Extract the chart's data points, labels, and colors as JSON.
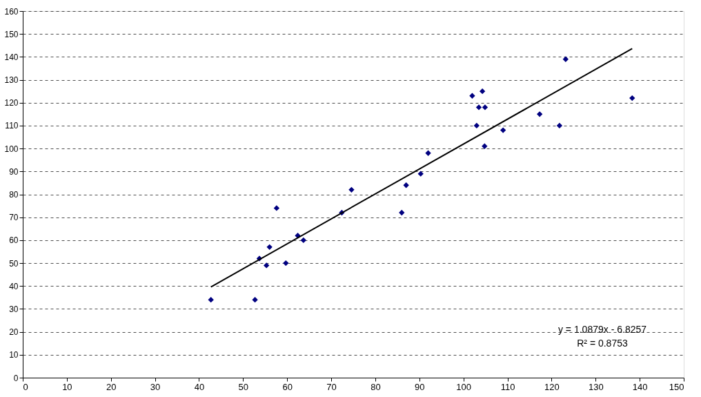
{
  "chart_data": {
    "type": "scatter",
    "xlim": [
      0,
      150
    ],
    "ylim": [
      0,
      160
    ],
    "xticks": [
      0,
      10,
      20,
      30,
      40,
      50,
      60,
      70,
      80,
      90,
      100,
      110,
      120,
      130,
      140,
      150
    ],
    "yticks": [
      0,
      10,
      20,
      30,
      40,
      50,
      60,
      70,
      80,
      90,
      100,
      110,
      120,
      130,
      140,
      150,
      160
    ],
    "grid": "y",
    "annotations": [
      "y = 1.0879x - 6.8257",
      "R² = 0.8753"
    ],
    "series": [
      {
        "marker": "diamond",
        "color": "#000080",
        "x": [
          42.7,
          52.7,
          53.7,
          55.3,
          56,
          57.6,
          59.7,
          62.4,
          63.7,
          72.4,
          74.6,
          86,
          87,
          90.3,
          92,
          102,
          103,
          103.5,
          104.3,
          104.8,
          104.9,
          109,
          117.3,
          121.8,
          123.2,
          138.3
        ],
        "values": [
          34,
          34,
          52,
          49,
          57,
          74,
          50,
          62,
          60,
          72,
          82,
          72,
          84,
          89,
          98,
          123,
          110,
          118,
          125,
          101,
          118,
          108,
          115,
          110,
          139,
          122
        ]
      },
      {
        "type": "line",
        "color": "#000000",
        "line_style": "solid",
        "x": [
          42.7,
          138.3
        ],
        "values": [
          39.6,
          143.6
        ]
      }
    ]
  }
}
